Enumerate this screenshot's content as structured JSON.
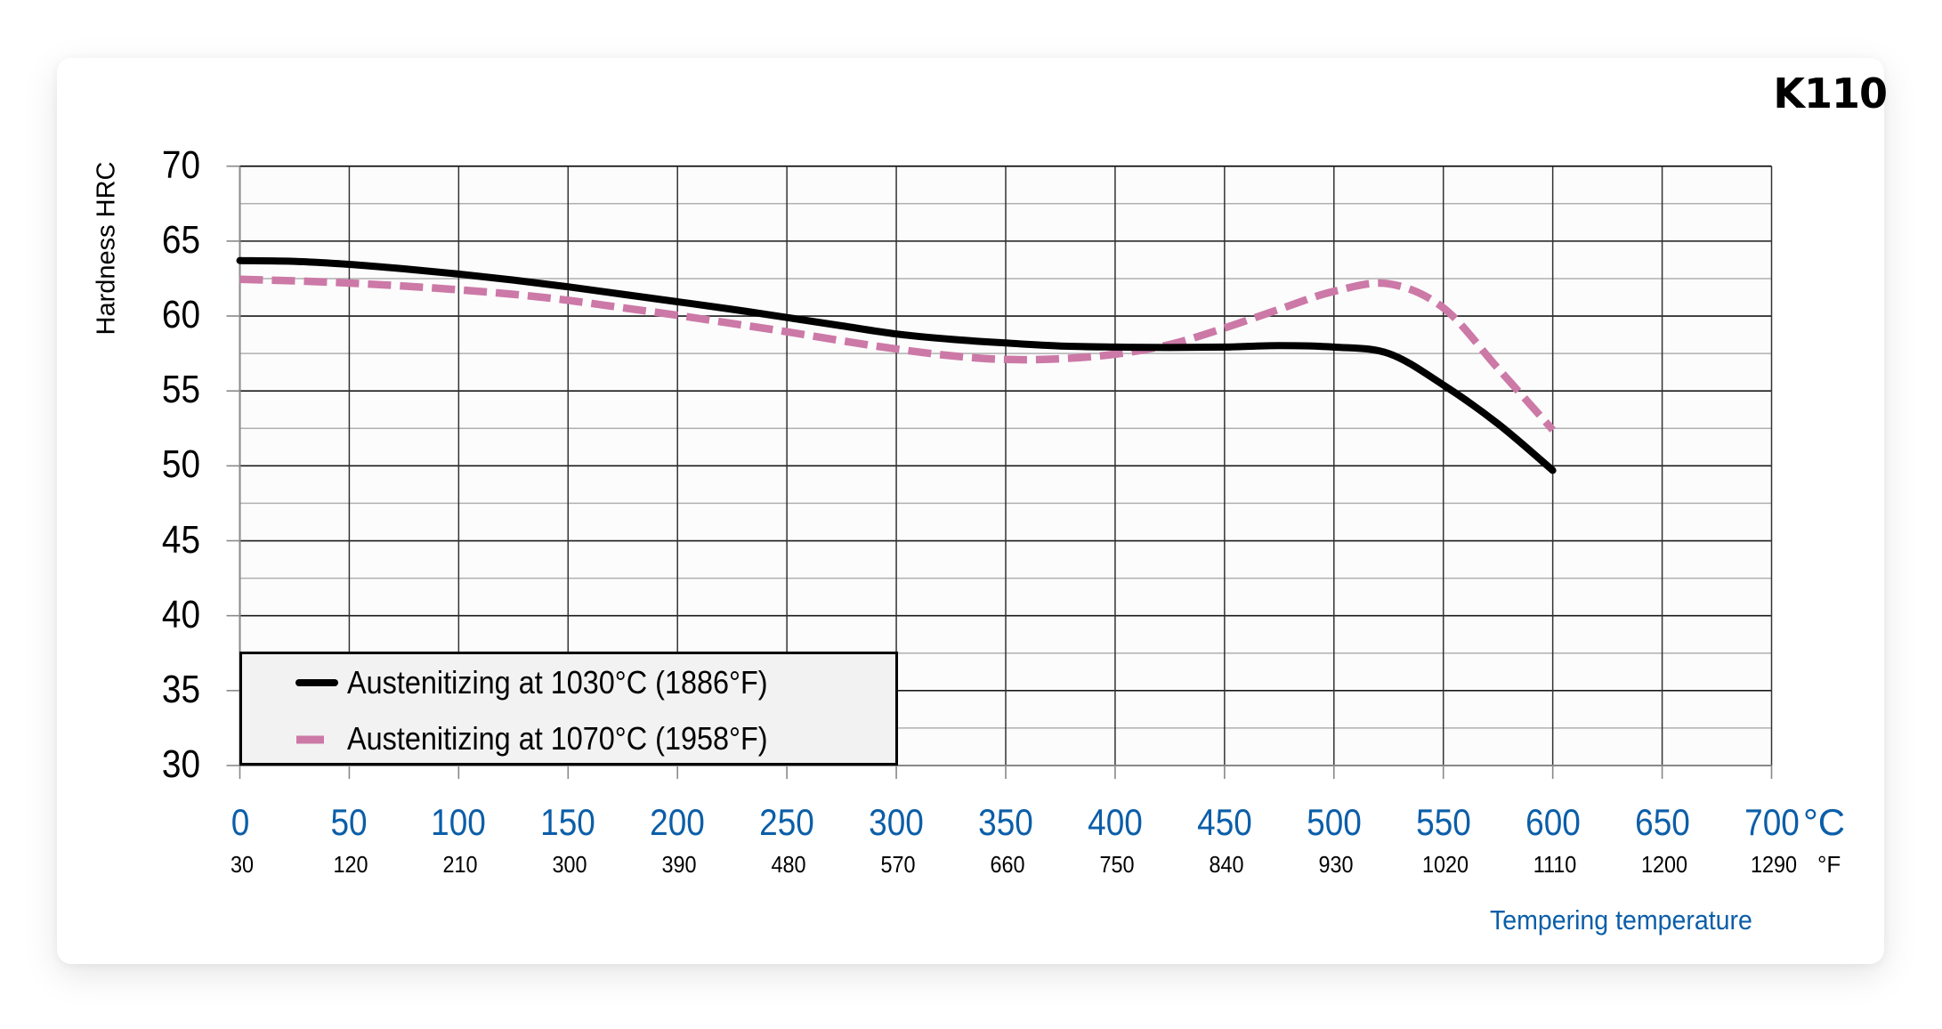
{
  "chart_data": {
    "type": "line",
    "title": "K110",
    "xlabel": "Tempering temperature",
    "ylabel": "Hardness HRC",
    "x_unit_primary": "°C",
    "x_unit_secondary": "°F",
    "xlim": [
      0,
      700
    ],
    "ylim": [
      30,
      70
    ],
    "x_ticks_c": [
      0,
      50,
      100,
      150,
      200,
      250,
      300,
      350,
      400,
      450,
      500,
      550,
      600,
      650,
      700
    ],
    "x_ticks_f": [
      30,
      120,
      210,
      300,
      390,
      480,
      570,
      660,
      750,
      840,
      930,
      1020,
      1110,
      1200,
      1290
    ],
    "y_ticks": [
      70,
      65,
      60,
      55,
      50,
      45,
      40,
      35,
      30
    ],
    "y_minor_step": 2.5,
    "grid": true,
    "legend_position": "lower-left",
    "x": [
      0,
      25,
      50,
      75,
      100,
      125,
      150,
      175,
      200,
      225,
      250,
      275,
      300,
      325,
      350,
      375,
      400,
      425,
      450,
      475,
      500,
      525,
      550,
      575,
      600
    ],
    "series": [
      {
        "name": "Austenitizing at 1030°C (1886°F)",
        "color": "#000000",
        "style": "solid",
        "values": [
          63.7,
          63.65,
          63.45,
          63.15,
          62.8,
          62.4,
          61.95,
          61.45,
          60.95,
          60.45,
          59.9,
          59.35,
          58.8,
          58.45,
          58.2,
          58.0,
          57.93,
          57.9,
          57.93,
          58.03,
          57.93,
          57.5,
          55.4,
          52.8,
          49.7
        ]
      },
      {
        "name": "Austenitizing at 1070°C (1958°F)",
        "color": "#cc79a7",
        "style": "dashed",
        "values": [
          62.45,
          62.35,
          62.2,
          62.0,
          61.75,
          61.45,
          61.05,
          60.55,
          60.05,
          59.5,
          58.95,
          58.35,
          57.8,
          57.35,
          57.1,
          57.15,
          57.45,
          58.1,
          59.2,
          60.45,
          61.65,
          62.15,
          60.55,
          56.5,
          52.4
        ]
      }
    ]
  },
  "header": {
    "title": "K110"
  },
  "axes": {
    "y_title": "Hardness HRC",
    "x_title": "Tempering temperature",
    "unit_c": "°C",
    "unit_f": "°F",
    "y_labels": [
      "70",
      "65",
      "60",
      "55",
      "50",
      "45",
      "40",
      "35",
      "30"
    ],
    "x_labels_c": [
      "0",
      "50",
      "100",
      "150",
      "200",
      "250",
      "300",
      "350",
      "400",
      "450",
      "500",
      "550",
      "600",
      "650",
      "700"
    ],
    "x_labels_f": [
      "30",
      "120",
      "210",
      "300",
      "390",
      "480",
      "570",
      "660",
      "750",
      "840",
      "930",
      "1020",
      "1110",
      "1200",
      "1290"
    ]
  },
  "legend": {
    "items": [
      {
        "label": "Austenitizing at 1030°C (1886°F)",
        "color": "#000000"
      },
      {
        "label": "Austenitizing at 1070°C (1958°F)",
        "color": "#cc79a7"
      }
    ]
  }
}
